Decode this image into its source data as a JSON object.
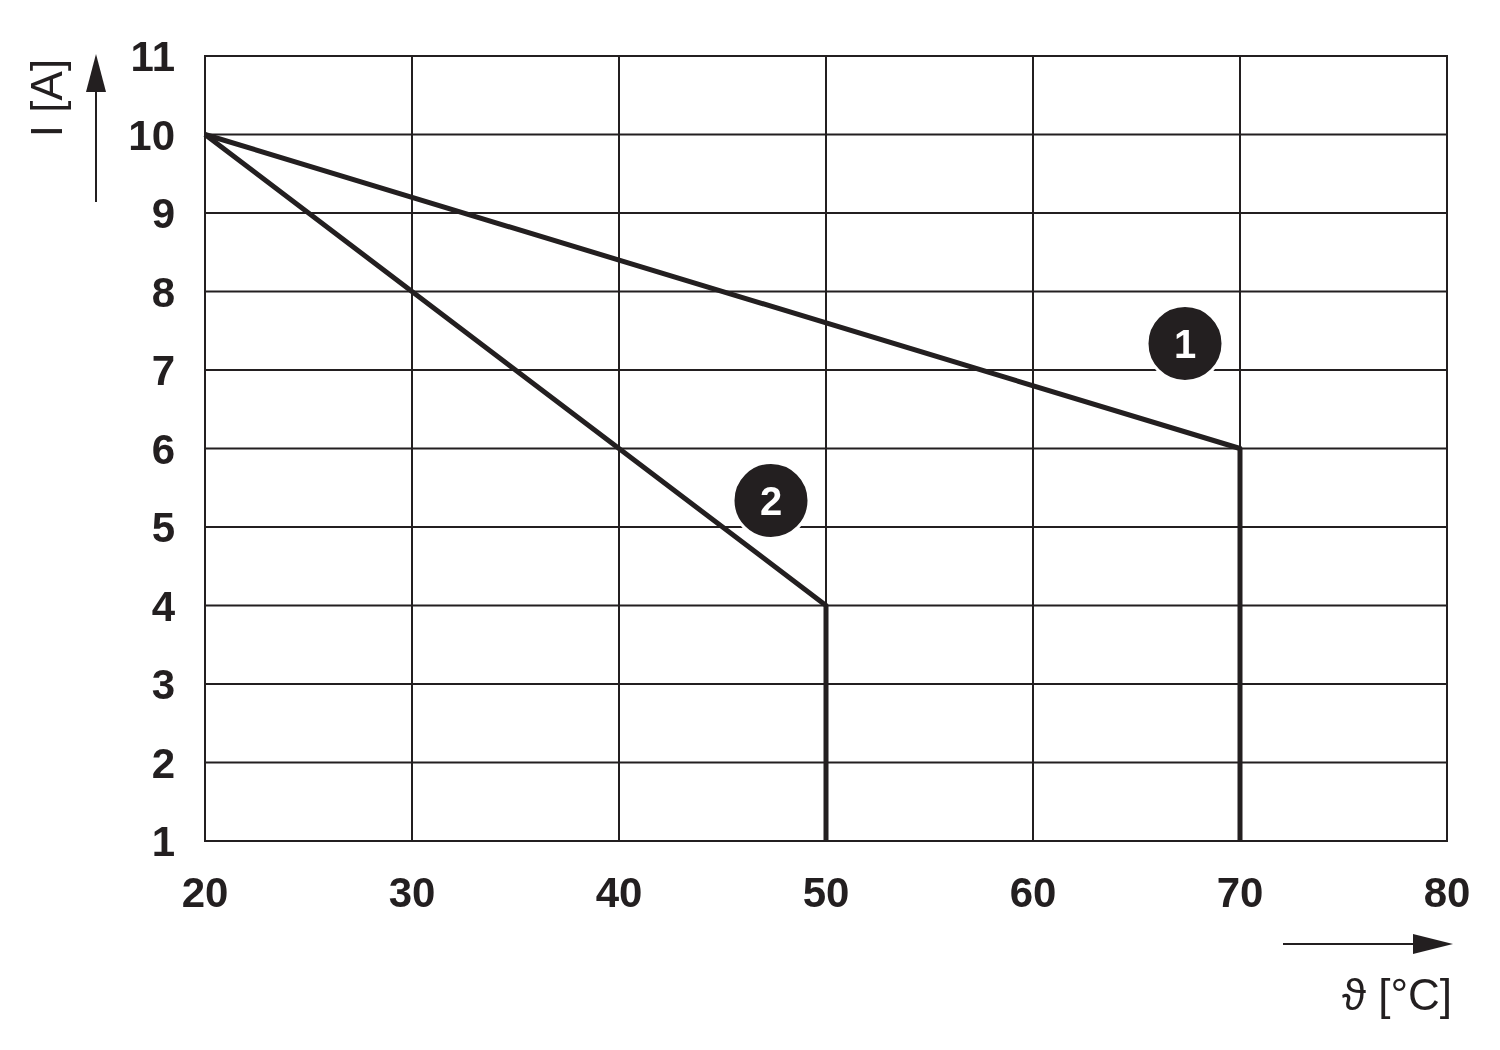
{
  "chart_data": {
    "type": "line",
    "xlabel": "ϑ [°C]",
    "ylabel": "I [A]",
    "xlim": [
      20,
      80
    ],
    "xticks": [
      20,
      30,
      40,
      50,
      60,
      70,
      80
    ],
    "ylim": [
      1,
      11
    ],
    "yticks": [
      1,
      2,
      3,
      4,
      5,
      6,
      7,
      8,
      9,
      10,
      11
    ],
    "grid": true,
    "marker": "none",
    "line_style": "solid",
    "series": [
      {
        "name": "1",
        "color": "#231f20",
        "x": [
          20,
          70,
          70
        ],
        "values": [
          10,
          6,
          1
        ]
      },
      {
        "name": "2",
        "color": "#231f20",
        "x": [
          20,
          50,
          50
        ],
        "values": [
          10,
          4,
          1
        ]
      }
    ]
  }
}
